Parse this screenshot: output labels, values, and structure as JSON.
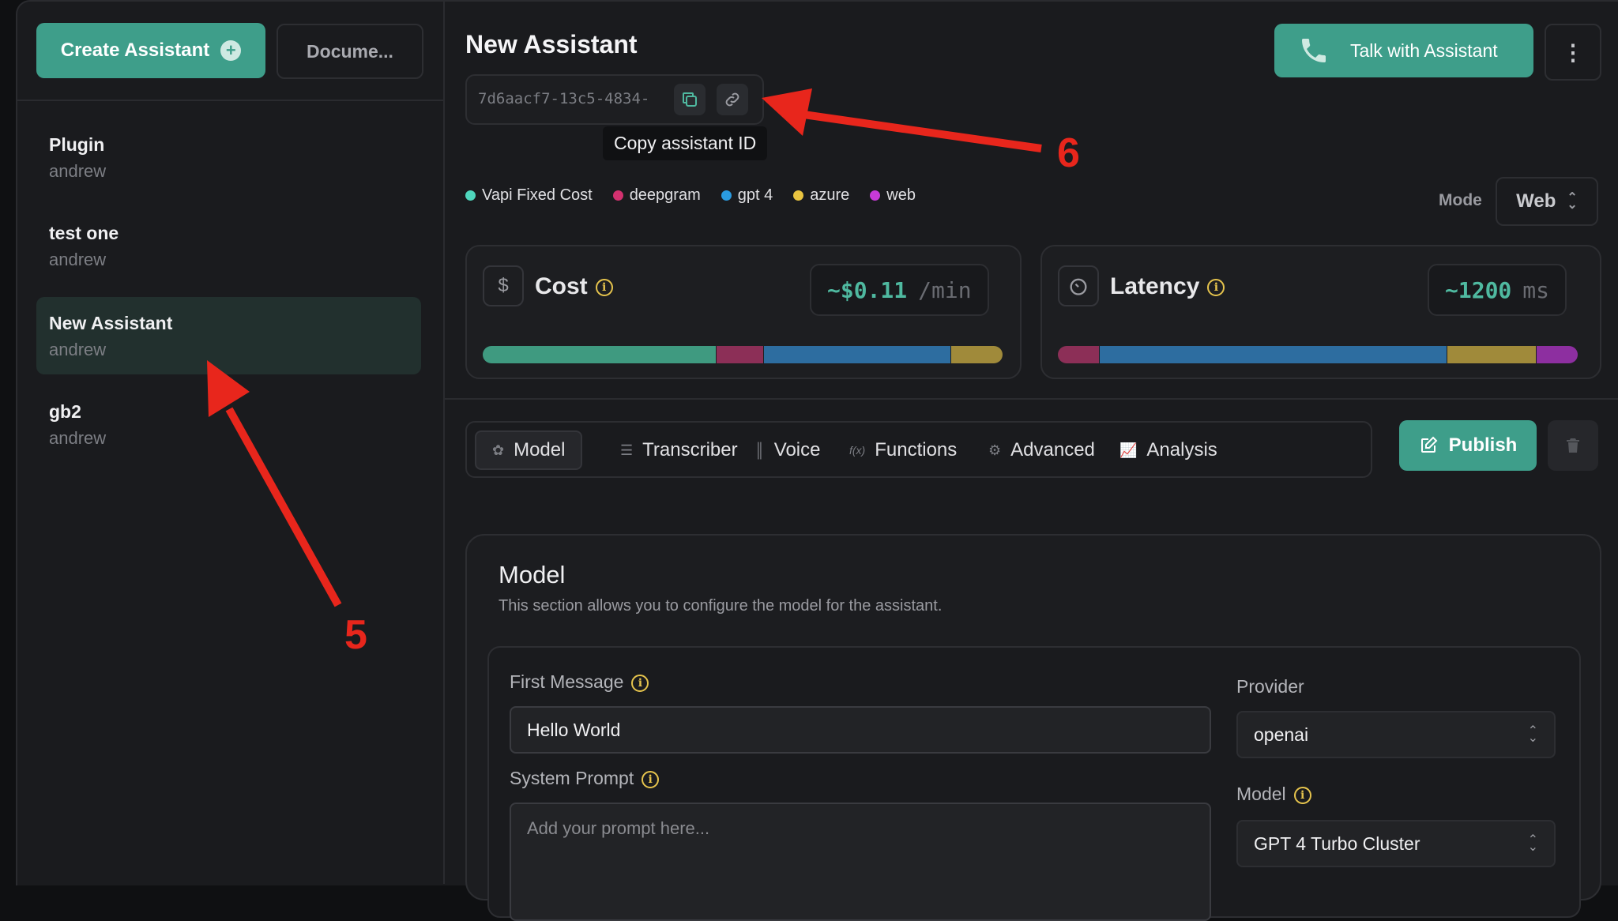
{
  "sidebar": {
    "create_label": "Create Assistant",
    "docs_label": "Docume...",
    "assistants": [
      {
        "name": "Plugin",
        "owner": "andrew"
      },
      {
        "name": "test one",
        "owner": "andrew"
      },
      {
        "name": "New Assistant",
        "owner": "andrew",
        "active": true
      },
      {
        "name": "gb2",
        "owner": "andrew"
      }
    ]
  },
  "header": {
    "title": "New Assistant",
    "assistant_id": "7d6aacf7-13c5-4834-",
    "tooltip": "Copy assistant ID",
    "talk_label": "Talk with Assistant",
    "mode_label": "Mode",
    "mode_value": "Web"
  },
  "legend": [
    {
      "label": "Vapi Fixed Cost",
      "color": "#4fd6bd"
    },
    {
      "label": "deepgram",
      "color": "#d2316f"
    },
    {
      "label": "gpt 4",
      "color": "#2a9be0"
    },
    {
      "label": "azure",
      "color": "#e9c440"
    },
    {
      "label": "web",
      "color": "#c83ad8"
    }
  ],
  "cost": {
    "label": "Cost",
    "value": "~$0.11",
    "unit": "/min",
    "segments": [
      {
        "share": 0.45,
        "color": "#3f9a80"
      },
      {
        "share": 0.09,
        "color": "#8c2f57"
      },
      {
        "share": 0.36,
        "color": "#2d6da0"
      },
      {
        "share": 0.1,
        "color": "#a08a3a"
      }
    ]
  },
  "latency": {
    "label": "Latency",
    "value": "~1200",
    "unit": "ms",
    "segments": [
      {
        "share": 0.08,
        "color": "#8c2f57"
      },
      {
        "share": 0.67,
        "color": "#2d6da0"
      },
      {
        "share": 0.17,
        "color": "#a08a3a"
      },
      {
        "share": 0.08,
        "color": "#8d2fa0"
      }
    ]
  },
  "tabs": [
    {
      "label": "Model",
      "icon": "brain-icon",
      "active": true
    },
    {
      "label": "Transcriber",
      "icon": "list-icon"
    },
    {
      "label": "Voice",
      "icon": "waveform-icon"
    },
    {
      "label": "Functions",
      "icon": "function-icon"
    },
    {
      "label": "Advanced",
      "icon": "gear-icon"
    },
    {
      "label": "Analysis",
      "icon": "chart-icon"
    }
  ],
  "publish_label": "Publish",
  "model_section": {
    "title": "Model",
    "description": "This section allows you to configure the model for the assistant.",
    "first_message_label": "First Message",
    "first_message_value": "Hello World",
    "system_prompt_label": "System Prompt",
    "system_prompt_placeholder": "Add your prompt here...",
    "provider_label": "Provider",
    "provider_value": "openai",
    "model_label": "Model",
    "model_value": "GPT 4 Turbo Cluster"
  },
  "annotations": {
    "arrow_5": "5",
    "arrow_6": "6"
  }
}
